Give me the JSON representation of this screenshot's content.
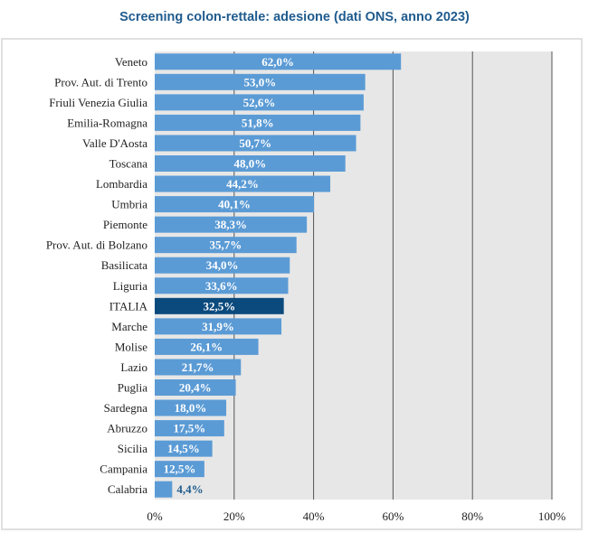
{
  "chart_data": {
    "type": "bar",
    "orientation": "horizontal",
    "title": "Screening colon-rettale: adesione (dati ONS, anno 2023)",
    "xlabel": "",
    "ylabel": "",
    "xlim": [
      0,
      100
    ],
    "x_ticks": [
      "0%",
      "20%",
      "40%",
      "60%",
      "80%",
      "100%"
    ],
    "grid": true,
    "categories": [
      "Veneto",
      "Prov. Aut. di Trento",
      "Friuli Venezia Giulia",
      "Emilia-Romagna",
      "Valle D'Aosta",
      "Toscana",
      "Lombardia",
      "Umbria",
      "Piemonte",
      "Prov. Aut. di Bolzano",
      "Basilicata",
      "Liguria",
      "ITALIA",
      "Marche",
      "Molise",
      "Lazio",
      "Puglia",
      "Sardegna",
      "Abruzzo",
      "Sicilia",
      "Campania",
      "Calabria"
    ],
    "values": [
      62.0,
      53.0,
      52.6,
      51.8,
      50.7,
      48.0,
      44.2,
      40.1,
      38.3,
      35.7,
      34.0,
      33.6,
      32.5,
      31.9,
      26.1,
      21.7,
      20.4,
      18.0,
      17.5,
      14.5,
      12.5,
      4.4
    ],
    "labels": [
      "62,0%",
      "53,0%",
      "52,6%",
      "51,8%",
      "50,7%",
      "48,0%",
      "44,2%",
      "40,1%",
      "38,3%",
      "35,7%",
      "34,0%",
      "33,6%",
      "32,5%",
      "31,9%",
      "26,1%",
      "21,7%",
      "20,4%",
      "18,0%",
      "17,5%",
      "14,5%",
      "12,5%",
      "4,4%"
    ],
    "highlight": "ITALIA",
    "colors": {
      "bar": "#5b9bd5",
      "highlight": "#0b4a7d",
      "plot_bg": "#e7e7e7",
      "grid": "#555555",
      "title": "#1f5b8e"
    }
  }
}
